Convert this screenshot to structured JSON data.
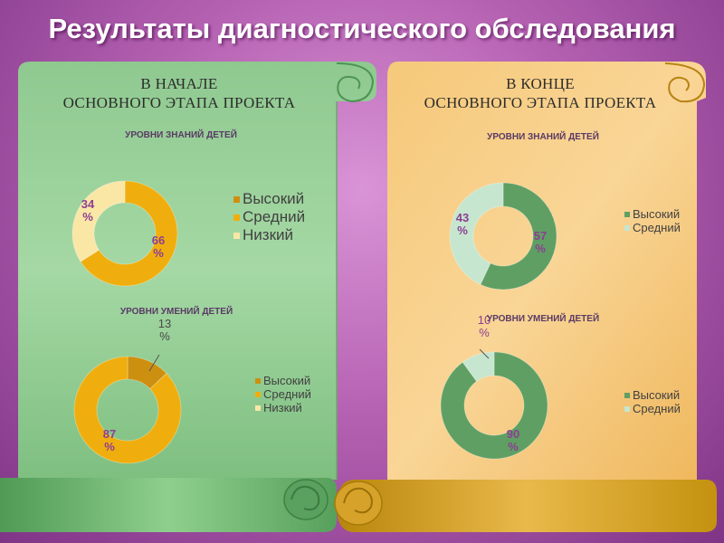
{
  "title": "Результаты диагностического обследования",
  "panels": {
    "left": {
      "heading_line1": "В  НАЧАЛЕ",
      "heading_line2": "ОСНОВНОГО ЭТАПА ПРОЕКТА"
    },
    "right": {
      "heading_line1": "В  КОНЦЕ",
      "heading_line2": "ОСНОВНОГО ЭТАПА ПРОЕКТА"
    }
  },
  "colors": {
    "orange": "#f0ae0e",
    "orange_dark": "#cd8f10",
    "cream": "#fae7a6",
    "green": "#5f9f63",
    "mint": "#c6e6cf",
    "label_purple": "#8d3e93",
    "label_gray": "#4a4a4a"
  },
  "chart_data": [
    {
      "type": "pie",
      "title": "УРОВНИ ЗНАНИЙ ДЕТЕЙ",
      "categories": [
        "Высокий",
        "Средний",
        "Низкий"
      ],
      "values": [
        0,
        66,
        34
      ],
      "labels": [
        "",
        "66 %",
        "34 %"
      ],
      "colors": [
        "#cd8f10",
        "#f0ae0e",
        "#fae7a6"
      ],
      "legend": "right"
    },
    {
      "type": "pie",
      "title": "УРОВНИ УМЕНИЙ ДЕТЕЙ",
      "categories": [
        "Высокий",
        "Средний",
        "Низкий"
      ],
      "values": [
        13,
        87,
        0
      ],
      "labels": [
        "13 %",
        "87 %",
        ""
      ],
      "colors": [
        "#cd8f10",
        "#f0ae0e",
        "#fae7a6"
      ],
      "legend": "right"
    },
    {
      "type": "pie",
      "title": "УРОВНИ ЗНАНИЙ ДЕТЕЙ",
      "categories": [
        "Высокий",
        "Средний"
      ],
      "values": [
        57,
        43
      ],
      "labels": [
        "57 %",
        "43 %"
      ],
      "colors": [
        "#5f9f63",
        "#c6e6cf"
      ],
      "legend": "right"
    },
    {
      "type": "pie",
      "title": "УРОВНИ УМЕНИЙ ДЕТЕЙ",
      "categories": [
        "Высокий",
        "Средний"
      ],
      "values": [
        90,
        10
      ],
      "labels": [
        "90 %",
        "10 %"
      ],
      "colors": [
        "#5f9f63",
        "#c6e6cf"
      ],
      "legend": "right"
    }
  ]
}
